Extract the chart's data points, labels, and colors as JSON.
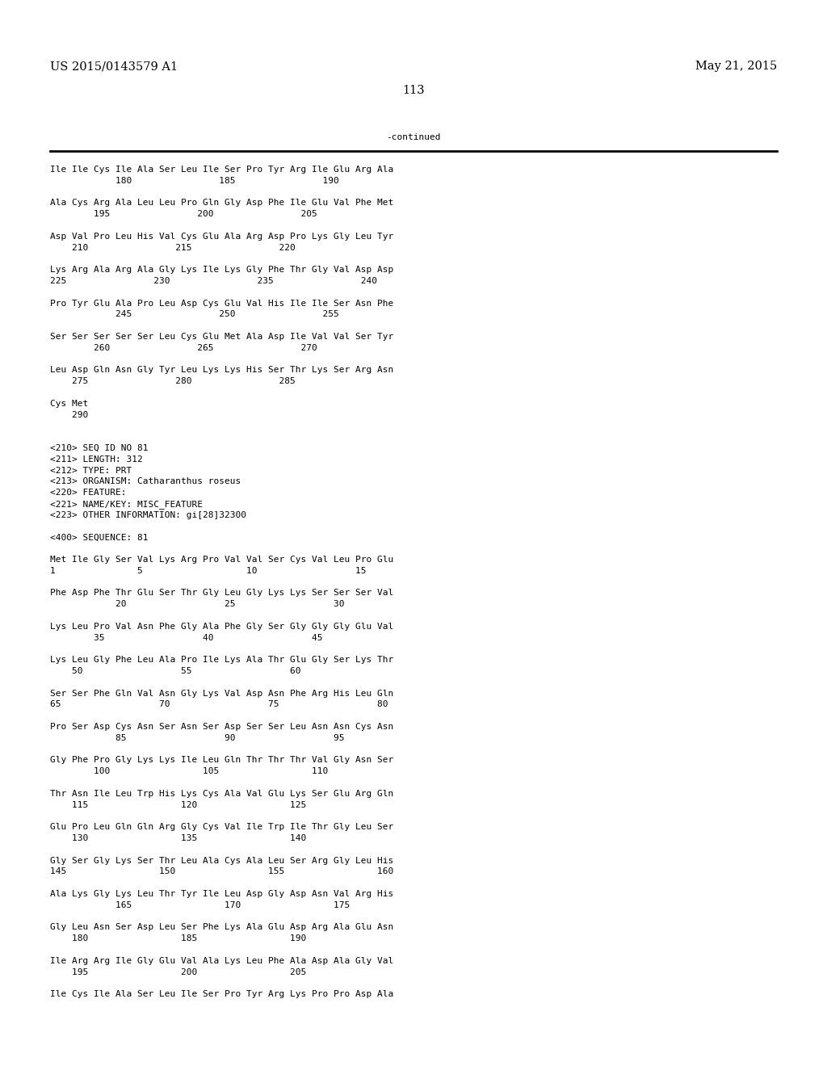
{
  "header_left": "US 2015/0143579 A1",
  "header_right": "May 21, 2015",
  "page_number": "113",
  "continued_text": "-continued",
  "background_color": "#ffffff",
  "text_color": "#000000",
  "font_size": 8.0,
  "mono_font": "DejaVu Sans Mono",
  "header_font_size": 10.5,
  "lines": [
    "Ile Ile Cys Ile Ala Ser Leu Ile Ser Pro Tyr Arg Ile Glu Arg Ala",
    "            180                185                190",
    "",
    "Ala Cys Arg Ala Leu Leu Pro Gln Gly Asp Phe Ile Glu Val Phe Met",
    "        195                200                205",
    "",
    "Asp Val Pro Leu His Val Cys Glu Ala Arg Asp Pro Lys Gly Leu Tyr",
    "    210                215                220",
    "",
    "Lys Arg Ala Arg Ala Gly Lys Ile Lys Gly Phe Thr Gly Val Asp Asp",
    "225                230                235                240",
    "",
    "Pro Tyr Glu Ala Pro Leu Asp Cys Glu Val His Ile Ile Ser Asn Phe",
    "            245                250                255",
    "",
    "Ser Ser Ser Ser Ser Leu Cys Glu Met Ala Asp Ile Val Val Ser Tyr",
    "        260                265                270",
    "",
    "Leu Asp Gln Asn Gly Tyr Leu Lys Lys His Ser Thr Lys Ser Arg Asn",
    "    275                280                285",
    "",
    "Cys Met",
    "    290",
    "",
    "",
    "<210> SEQ ID NO 81",
    "<211> LENGTH: 312",
    "<212> TYPE: PRT",
    "<213> ORGANISM: Catharanthus roseus",
    "<220> FEATURE:",
    "<221> NAME/KEY: MISC_FEATURE",
    "<223> OTHER INFORMATION: gi[28]32300",
    "",
    "<400> SEQUENCE: 81",
    "",
    "Met Ile Gly Ser Val Lys Arg Pro Val Val Ser Cys Val Leu Pro Glu",
    "1               5                   10                  15",
    "",
    "Phe Asp Phe Thr Glu Ser Thr Gly Leu Gly Lys Lys Ser Ser Ser Val",
    "            20                  25                  30",
    "",
    "Lys Leu Pro Val Asn Phe Gly Ala Phe Gly Ser Gly Gly Gly Glu Val",
    "        35                  40                  45",
    "",
    "Lys Leu Gly Phe Leu Ala Pro Ile Lys Ala Thr Glu Gly Ser Lys Thr",
    "    50                  55                  60",
    "",
    "Ser Ser Phe Gln Val Asn Gly Lys Val Asp Asn Phe Arg His Leu Gln",
    "65                  70                  75                  80",
    "",
    "Pro Ser Asp Cys Asn Ser Asn Ser Asp Ser Ser Leu Asn Asn Cys Asn",
    "            85                  90                  95",
    "",
    "Gly Phe Pro Gly Lys Lys Ile Leu Gln Thr Thr Thr Val Gly Asn Ser",
    "        100                 105                 110",
    "",
    "Thr Asn Ile Leu Trp His Lys Cys Ala Val Glu Lys Ser Glu Arg Gln",
    "    115                 120                 125",
    "",
    "Glu Pro Leu Gln Gln Arg Gly Cys Val Ile Trp Ile Thr Gly Leu Ser",
    "    130                 135                 140",
    "",
    "Gly Ser Gly Lys Ser Thr Leu Ala Cys Ala Leu Ser Arg Gly Leu His",
    "145                 150                 155                 160",
    "",
    "Ala Lys Gly Lys Leu Thr Tyr Ile Leu Asp Gly Asp Asn Val Arg His",
    "            165                 170                 175",
    "",
    "Gly Leu Asn Ser Asp Leu Ser Phe Lys Ala Glu Asp Arg Ala Glu Asn",
    "    180                 185                 190",
    "",
    "Ile Arg Arg Ile Gly Glu Val Ala Lys Leu Phe Ala Asp Ala Gly Val",
    "    195                 200                 205",
    "",
    "Ile Cys Ile Ala Ser Leu Ile Ser Pro Tyr Arg Lys Pro Pro Asp Ala"
  ]
}
